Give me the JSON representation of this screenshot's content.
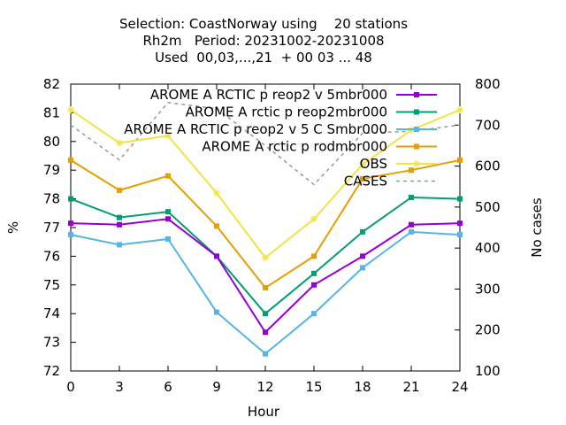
{
  "title_lines": [
    "Selection: CoastNorway using    20 stations",
    "Rh2m   Period: 20231002-20231008",
    "Used  00,03,...,21  + 00 03 ... 48"
  ],
  "chart_data": {
    "type": "line",
    "xlabel": "Hour",
    "ylabel": "%",
    "y2label": "No cases",
    "x": [
      0,
      3,
      6,
      9,
      12,
      15,
      18,
      21,
      24
    ],
    "xlim": [
      0,
      24
    ],
    "ylim": [
      72,
      82
    ],
    "y2lim": [
      100,
      800
    ],
    "xticks": [
      "0",
      "3",
      "6",
      "9",
      "12",
      "15",
      "18",
      "21",
      "24"
    ],
    "yticks": [
      "72",
      "73",
      "74",
      "75",
      "76",
      "77",
      "78",
      "79",
      "80",
      "81",
      "82"
    ],
    "y2ticks": [
      "100",
      "200",
      "300",
      "400",
      "500",
      "600",
      "700",
      "800"
    ],
    "grid": false,
    "legend_position": "top-right",
    "series": [
      {
        "name": "AROME_ARCTIC_preop2_v5mbr000",
        "legend_label": "AROME A RCTIC p reop2 v 5mbr000",
        "color": "#9400d3",
        "marker": "square",
        "axis": "left",
        "values": [
          77.15,
          77.1,
          77.3,
          76.0,
          73.35,
          75.0,
          76.0,
          77.1,
          77.15
        ]
      },
      {
        "name": "AROME_Arctic_preop2mbr000",
        "legend_label": "AROME A rctic p reop2mbr000",
        "color": "#009e73",
        "marker": "square",
        "axis": "left",
        "values": [
          78.0,
          77.35,
          77.55,
          76.0,
          74.0,
          75.4,
          76.85,
          78.05,
          78.0
        ]
      },
      {
        "name": "AROME_ARCTIC_preop2_v5_CSmbr000",
        "legend_label": "AROME A RCTIC p reop2 v 5 C Smbr000",
        "color": "#56b4e9",
        "marker": "square",
        "axis": "left",
        "values": [
          76.75,
          76.4,
          76.6,
          74.05,
          72.6,
          74.0,
          75.6,
          76.85,
          76.75
        ]
      },
      {
        "name": "AROME_Arctic_prodmbr000",
        "legend_label": "AROME A rctic p rodmbr000",
        "color": "#e69f00",
        "marker": "square",
        "axis": "left",
        "values": [
          79.35,
          78.3,
          78.8,
          77.05,
          74.9,
          76.0,
          78.7,
          79.0,
          79.35
        ]
      },
      {
        "name": "OBS",
        "legend_label": "OBS",
        "color": "#f0e442",
        "marker": "star",
        "axis": "left",
        "values": [
          81.1,
          79.95,
          80.2,
          78.2,
          75.95,
          77.3,
          79.2,
          80.4,
          81.1
        ]
      },
      {
        "name": "CASES",
        "legend_label": "CASES",
        "color": "#999999",
        "marker": "none",
        "dashed": true,
        "axis": "right",
        "values": [
          700,
          615,
          755,
          740,
          650,
          555,
          680,
          685,
          700
        ]
      }
    ]
  }
}
